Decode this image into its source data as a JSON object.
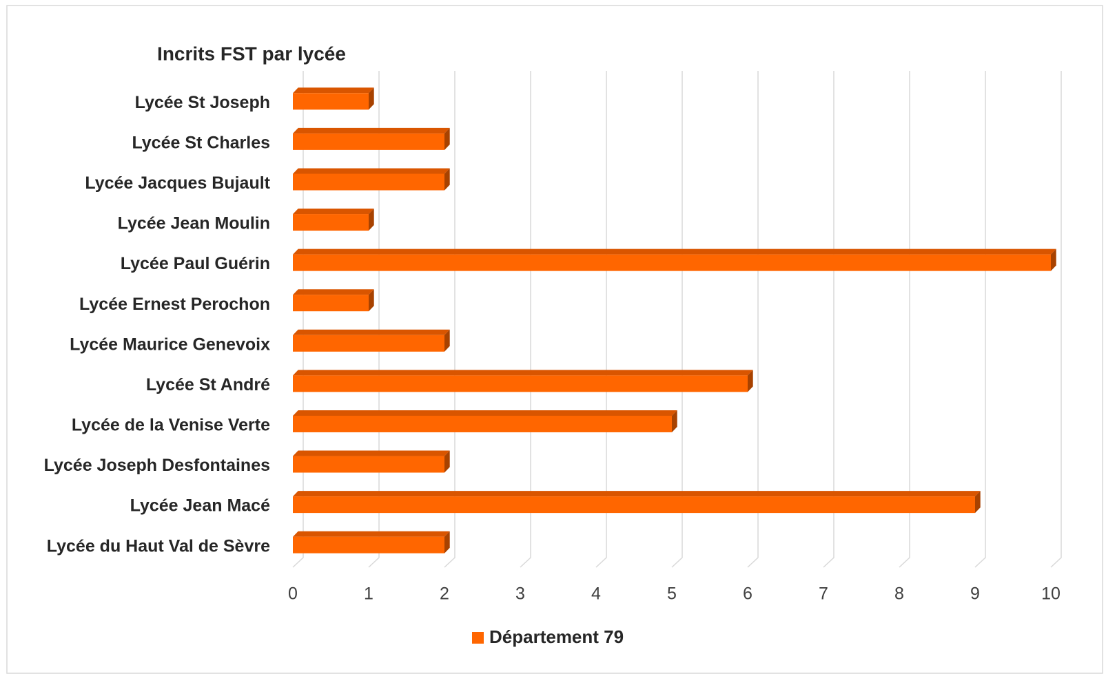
{
  "chart_data": {
    "type": "bar",
    "orientation": "horizontal",
    "title": "Incrits FST par lycée",
    "categories": [
      "Lycée St Joseph",
      "Lycée St Charles",
      "Lycée Jacques Bujault",
      "Lycée Jean Moulin",
      "Lycée Paul Guérin",
      "Lycée Ernest Perochon",
      "Lycée Maurice Genevoix",
      "Lycée St André",
      "Lycée de la Venise Verte",
      "Lycée Joseph Desfontaines",
      "Lycée Jean Macé",
      "Lycée du Haut Val de Sèvre"
    ],
    "series": [
      {
        "name": "Département 79",
        "color": "#ff6600",
        "values": [
          1,
          2,
          2,
          1,
          10,
          1,
          2,
          6,
          5,
          2,
          9,
          2
        ]
      }
    ],
    "xlim": [
      0,
      10
    ],
    "xticks": [
      0,
      1,
      2,
      3,
      4,
      5,
      6,
      7,
      8,
      9,
      10
    ],
    "grid": true,
    "legend": "bottom"
  }
}
